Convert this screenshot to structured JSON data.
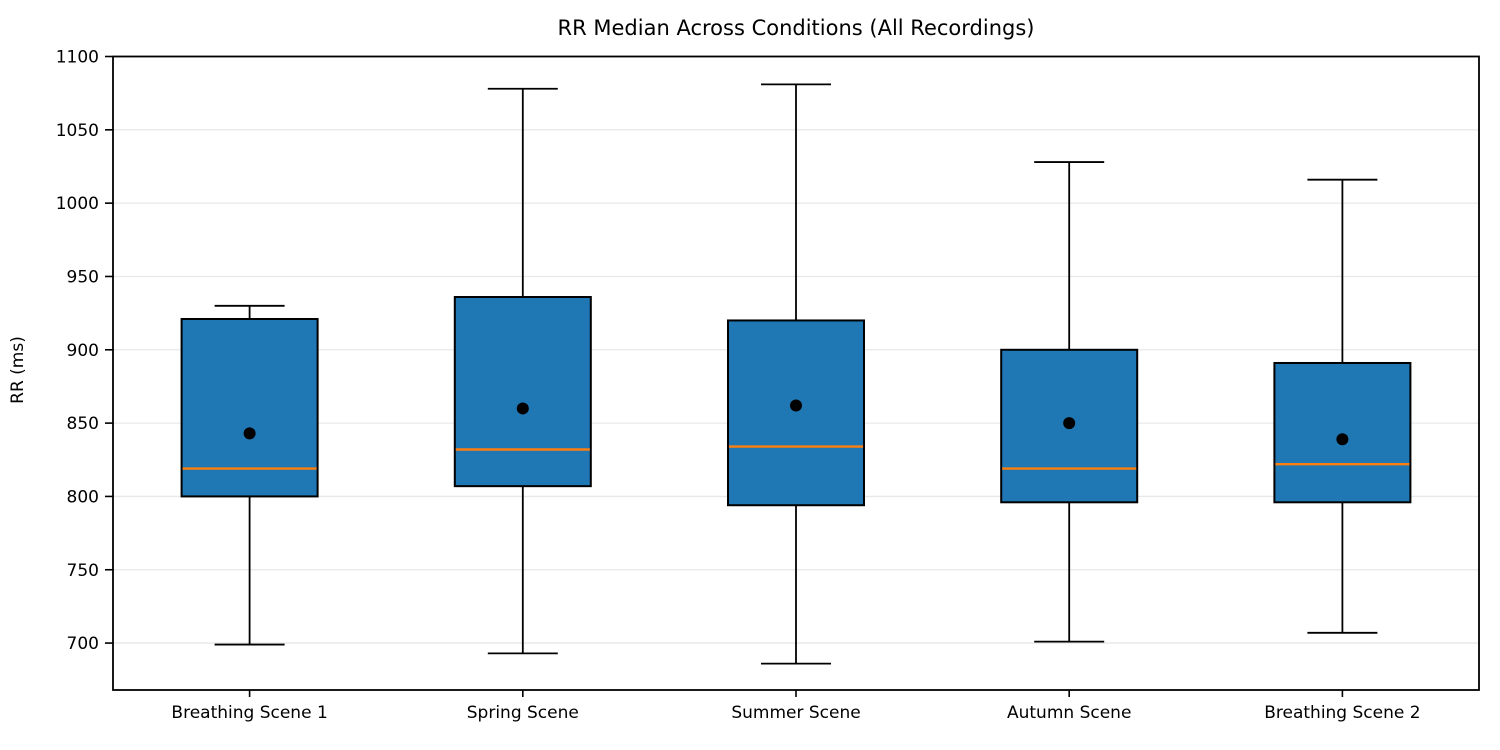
{
  "title": "RR Median Across Conditions (All Recordings)",
  "chart_data": {
    "type": "box",
    "title": "RR Median Across Conditions (All Recordings)",
    "xlabel": "",
    "ylabel": "RR (ms)",
    "categories": [
      "Breathing Scene 1",
      "Spring Scene",
      "Summer Scene",
      "Autumn Scene",
      "Breathing Scene 2"
    ],
    "boxes": [
      {
        "category": "Breathing Scene 1",
        "whisker_low": 699,
        "q1": 800,
        "median": 819,
        "mean": 843,
        "q3": 921,
        "whisker_high": 930
      },
      {
        "category": "Spring Scene",
        "whisker_low": 693,
        "q1": 807,
        "median": 832,
        "mean": 860,
        "q3": 936,
        "whisker_high": 1078
      },
      {
        "category": "Summer Scene",
        "whisker_low": 686,
        "q1": 794,
        "median": 834,
        "mean": 862,
        "q3": 920,
        "whisker_high": 1081
      },
      {
        "category": "Autumn Scene",
        "whisker_low": 701,
        "q1": 796,
        "median": 819,
        "mean": 850,
        "q3": 900,
        "whisker_high": 1028
      },
      {
        "category": "Breathing Scene 2",
        "whisker_low": 707,
        "q1": 796,
        "median": 822,
        "mean": 839,
        "q3": 891,
        "whisker_high": 1016
      }
    ],
    "yticks": [
      700,
      750,
      800,
      850,
      900,
      950,
      1000,
      1050,
      1100
    ],
    "ylim": [
      668,
      1100
    ],
    "grid": "horizontal",
    "legend": "none",
    "colors": {
      "box_fill": "#1f77b4",
      "box_edge": "#000000",
      "median_line": "#ff7f0e",
      "whisker": "#000000",
      "mean_marker": "#000000",
      "grid_line": "#e8e8e8",
      "spine": "#000000",
      "tick_label": "#000000"
    }
  }
}
